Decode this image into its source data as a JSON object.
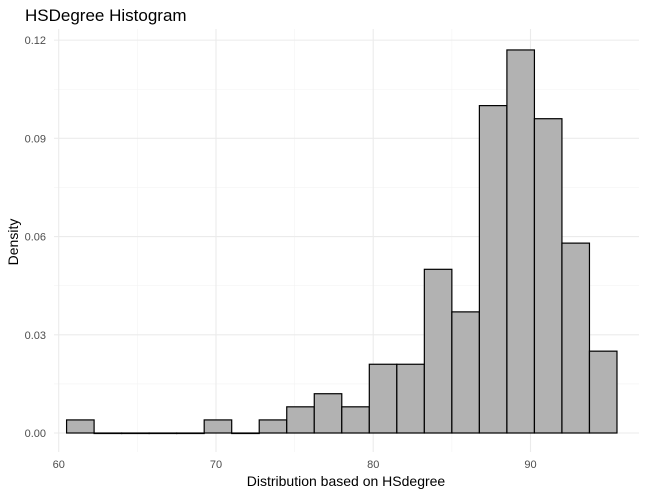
{
  "chart_data": {
    "type": "bar",
    "title": "HSDegree Histogram",
    "xlabel": "Distribution based on HSdegree",
    "ylabel": "Density",
    "xlim": [
      59.7,
      96.9
    ],
    "ylim": [
      -0.0058,
      0.1234
    ],
    "x_ticks": [
      60,
      70,
      80,
      90
    ],
    "x_tick_labels": [
      "60",
      "70",
      "80",
      "90"
    ],
    "y_ticks": [
      0,
      0.03,
      0.06,
      0.09,
      0.12
    ],
    "y_tick_labels": [
      "0.00",
      "0.03",
      "0.06",
      "0.09",
      "0.12"
    ],
    "grid": true,
    "bins": [
      {
        "x0": 60.5,
        "x1": 62.25,
        "value": 0.004
      },
      {
        "x0": 62.25,
        "x1": 64.0,
        "value": 0.0
      },
      {
        "x0": 64.0,
        "x1": 65.75,
        "value": 0.0
      },
      {
        "x0": 65.75,
        "x1": 67.5,
        "value": 0.0
      },
      {
        "x0": 67.5,
        "x1": 69.25,
        "value": 0.0
      },
      {
        "x0": 69.25,
        "x1": 71.0,
        "value": 0.004
      },
      {
        "x0": 71.0,
        "x1": 72.75,
        "value": 0.0
      },
      {
        "x0": 72.75,
        "x1": 74.5,
        "value": 0.004
      },
      {
        "x0": 74.5,
        "x1": 76.25,
        "value": 0.008
      },
      {
        "x0": 76.25,
        "x1": 78.0,
        "value": 0.012
      },
      {
        "x0": 78.0,
        "x1": 79.75,
        "value": 0.008
      },
      {
        "x0": 79.75,
        "x1": 81.5,
        "value": 0.021
      },
      {
        "x0": 81.5,
        "x1": 83.25,
        "value": 0.021
      },
      {
        "x0": 83.25,
        "x1": 85.0,
        "value": 0.05
      },
      {
        "x0": 85.0,
        "x1": 86.75,
        "value": 0.037
      },
      {
        "x0": 86.75,
        "x1": 88.5,
        "value": 0.1
      },
      {
        "x0": 88.5,
        "x1": 90.25,
        "value": 0.117
      },
      {
        "x0": 90.25,
        "x1": 92.0,
        "value": 0.096
      },
      {
        "x0": 92.0,
        "x1": 93.75,
        "value": 0.058
      },
      {
        "x0": 93.75,
        "x1": 95.5,
        "value": 0.025
      }
    ]
  }
}
